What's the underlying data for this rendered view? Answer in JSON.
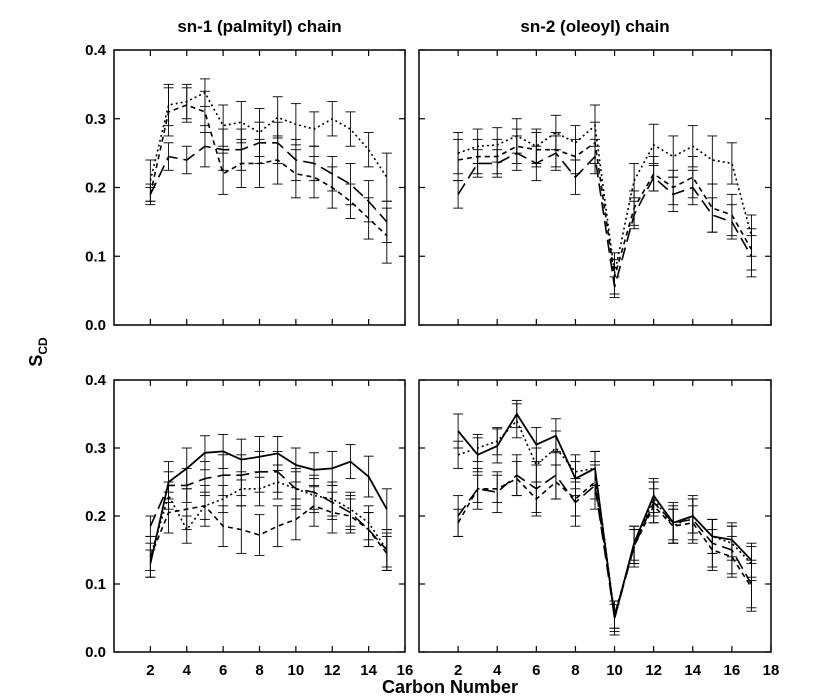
{
  "figure": {
    "xlabel": "Carbon Number",
    "ylabel": "S",
    "ylabel_sub": "CD"
  },
  "chart_data": [
    {
      "id": "top-left",
      "type": "line",
      "title": "sn-1 (palmityl) chain",
      "xlim": [
        0,
        16
      ],
      "ylim": [
        0,
        0.4
      ],
      "xticks": [
        2,
        4,
        6,
        8,
        10,
        12,
        14,
        16
      ],
      "yticks": [
        "0.0",
        "0.1",
        "0.2",
        "0.3",
        "0.4"
      ],
      "show_x_ticklabels": false,
      "show_y_ticklabels": true,
      "series": [
        {
          "style": "dotted",
          "x": [
            2,
            3,
            4,
            5,
            6,
            7,
            8,
            9,
            10,
            11,
            12,
            13,
            14,
            15
          ],
          "y": [
            0.21,
            0.32,
            0.325,
            0.338,
            0.29,
            0.295,
            0.28,
            0.302,
            0.292,
            0.285,
            0.3,
            0.285,
            0.255,
            0.215
          ],
          "err": [
            0.03,
            0.03,
            0.025,
            0.02,
            0.03,
            0.03,
            0.035,
            0.03,
            0.03,
            0.025,
            0.025,
            0.025,
            0.025,
            0.035
          ]
        },
        {
          "style": "short-dash",
          "x": [
            2,
            3,
            4,
            5,
            6,
            7,
            8,
            9,
            10,
            11,
            12,
            13,
            14,
            15
          ],
          "y": [
            0.19,
            0.31,
            0.32,
            0.31,
            0.22,
            0.235,
            0.235,
            0.24,
            0.22,
            0.215,
            0.2,
            0.18,
            0.155,
            0.13
          ],
          "err": [
            0.015,
            0.035,
            0.025,
            0.03,
            0.03,
            0.035,
            0.035,
            0.035,
            0.035,
            0.03,
            0.03,
            0.025,
            0.03,
            0.04
          ]
        },
        {
          "style": "long-dash",
          "x": [
            2,
            3,
            4,
            5,
            6,
            7,
            8,
            9,
            10,
            11,
            12,
            13,
            14,
            15
          ],
          "y": [
            0.19,
            0.245,
            0.24,
            0.26,
            0.255,
            0.255,
            0.265,
            0.265,
            0.24,
            0.235,
            0.22,
            0.205,
            0.18,
            0.15
          ],
          "err": [
            0.01,
            0.02,
            0.02,
            0.03,
            0.03,
            0.03,
            0.03,
            0.03,
            0.03,
            0.025,
            0.025,
            0.03,
            0.03,
            0.03
          ]
        }
      ]
    },
    {
      "id": "top-right",
      "type": "line",
      "title": "sn-2 (oleoyl) chain",
      "xlim": [
        0,
        18
      ],
      "ylim": [
        0,
        0.4
      ],
      "xticks": [
        2,
        4,
        6,
        8,
        10,
        12,
        14,
        16,
        18
      ],
      "yticks": [
        "0.0",
        "0.1",
        "0.2",
        "0.3",
        "0.4"
      ],
      "show_x_ticklabels": false,
      "show_y_ticklabels": false,
      "series": [
        {
          "style": "dotted",
          "x": [
            2,
            3,
            4,
            5,
            6,
            7,
            8,
            9,
            10,
            11,
            12,
            13,
            14,
            15,
            16,
            17
          ],
          "y": [
            0.25,
            0.26,
            0.262,
            0.275,
            0.26,
            0.28,
            0.265,
            0.29,
            0.075,
            0.21,
            0.262,
            0.245,
            0.26,
            0.24,
            0.235,
            0.13
          ],
          "err": [
            0.03,
            0.025,
            0.025,
            0.025,
            0.025,
            0.025,
            0.025,
            0.03,
            0.03,
            0.025,
            0.03,
            0.03,
            0.03,
            0.035,
            0.03,
            0.03
          ]
        },
        {
          "style": "short-dash",
          "x": [
            2,
            3,
            4,
            5,
            6,
            7,
            8,
            9,
            10,
            11,
            12,
            13,
            14,
            15,
            16,
            17
          ],
          "y": [
            0.24,
            0.245,
            0.245,
            0.26,
            0.255,
            0.255,
            0.245,
            0.265,
            0.07,
            0.17,
            0.22,
            0.2,
            0.215,
            0.17,
            0.16,
            0.11
          ],
          "err": [
            0.03,
            0.025,
            0.025,
            0.025,
            0.025,
            0.025,
            0.025,
            0.03,
            0.025,
            0.025,
            0.025,
            0.025,
            0.03,
            0.035,
            0.03,
            0.03
          ]
        },
        {
          "style": "long-dash",
          "x": [
            2,
            3,
            4,
            5,
            6,
            7,
            8,
            9,
            10,
            11,
            12,
            13,
            14,
            15,
            16,
            17
          ],
          "y": [
            0.19,
            0.235,
            0.235,
            0.25,
            0.235,
            0.25,
            0.215,
            0.245,
            0.055,
            0.16,
            0.215,
            0.19,
            0.2,
            0.16,
            0.15,
            0.1
          ],
          "err": [
            0.02,
            0.02,
            0.02,
            0.025,
            0.025,
            0.025,
            0.025,
            0.025,
            0.015,
            0.02,
            0.02,
            0.025,
            0.025,
            0.025,
            0.025,
            0.03
          ]
        }
      ]
    },
    {
      "id": "bottom-left",
      "type": "line",
      "title": "",
      "xlim": [
        0,
        16
      ],
      "ylim": [
        0,
        0.4
      ],
      "xticks": [
        2,
        4,
        6,
        8,
        10,
        12,
        14,
        16
      ],
      "yticks": [
        "0.0",
        "0.1",
        "0.2",
        "0.3",
        "0.4"
      ],
      "show_x_ticklabels": true,
      "show_y_ticklabels": true,
      "series": [
        {
          "style": "solid",
          "x": [
            2,
            3,
            4,
            5,
            6,
            7,
            8,
            9,
            10,
            11,
            12,
            13,
            14,
            15
          ],
          "y": [
            0.13,
            0.25,
            0.27,
            0.293,
            0.295,
            0.283,
            0.287,
            0.292,
            0.275,
            0.268,
            0.27,
            0.28,
            0.258,
            0.21
          ],
          "err": [
            0.02,
            0.03,
            0.03,
            0.025,
            0.025,
            0.03,
            0.03,
            0.025,
            0.025,
            0.025,
            0.025,
            0.025,
            0.03,
            0.03
          ]
        },
        {
          "style": "long-dash",
          "x": [
            2,
            3,
            4,
            5,
            6,
            7,
            8,
            9,
            10,
            11,
            12,
            13,
            14,
            15
          ],
          "y": [
            0.185,
            0.245,
            0.245,
            0.255,
            0.26,
            0.26,
            0.265,
            0.265,
            0.24,
            0.235,
            0.22,
            0.205,
            0.18,
            0.15
          ],
          "err": [
            0.015,
            0.02,
            0.025,
            0.025,
            0.03,
            0.03,
            0.03,
            0.03,
            0.03,
            0.025,
            0.025,
            0.025,
            0.025,
            0.03
          ]
        },
        {
          "style": "dotted",
          "x": [
            2,
            3,
            4,
            5,
            6,
            7,
            8,
            9,
            10,
            11,
            12,
            13,
            14,
            15
          ],
          "y": [
            0.14,
            0.23,
            0.18,
            0.215,
            0.225,
            0.24,
            0.24,
            0.25,
            0.24,
            0.23,
            0.225,
            0.21,
            0.19,
            0.15
          ],
          "err": [
            0.02,
            0.02,
            0.02,
            0.02,
            0.02,
            0.025,
            0.025,
            0.025,
            0.025,
            0.025,
            0.025,
            0.025,
            0.025,
            0.025
          ]
        },
        {
          "style": "short-dash",
          "x": [
            2,
            3,
            4,
            5,
            6,
            7,
            8,
            9,
            10,
            11,
            12,
            13,
            14,
            15
          ],
          "y": [
            0.14,
            0.205,
            0.21,
            0.215,
            0.185,
            0.18,
            0.172,
            0.185,
            0.195,
            0.215,
            0.205,
            0.2,
            0.18,
            0.145
          ],
          "err": [
            0.03,
            0.03,
            0.03,
            0.03,
            0.03,
            0.035,
            0.03,
            0.03,
            0.03,
            0.03,
            0.03,
            0.025,
            0.025,
            0.025
          ]
        }
      ]
    },
    {
      "id": "bottom-right",
      "type": "line",
      "title": "",
      "xlim": [
        0,
        18
      ],
      "ylim": [
        0,
        0.4
      ],
      "xticks": [
        2,
        4,
        6,
        8,
        10,
        12,
        14,
        16,
        18
      ],
      "yticks": [
        "0.0",
        "0.1",
        "0.2",
        "0.3",
        "0.4"
      ],
      "show_x_ticklabels": true,
      "show_y_ticklabels": false,
      "series": [
        {
          "style": "solid",
          "x": [
            2,
            3,
            4,
            5,
            6,
            7,
            8,
            9,
            10,
            11,
            12,
            13,
            14,
            15,
            16,
            17
          ],
          "y": [
            0.325,
            0.29,
            0.303,
            0.35,
            0.305,
            0.318,
            0.255,
            0.27,
            0.05,
            0.16,
            0.23,
            0.19,
            0.2,
            0.17,
            0.165,
            0.135
          ],
          "err": [
            0.025,
            0.025,
            0.025,
            0.02,
            0.025,
            0.025,
            0.025,
            0.025,
            0.025,
            0.025,
            0.025,
            0.025,
            0.025,
            0.025,
            0.025,
            0.025
          ]
        },
        {
          "style": "dotted",
          "x": [
            2,
            3,
            4,
            5,
            6,
            7,
            8,
            9,
            10,
            11,
            12,
            13,
            14,
            15,
            16,
            17
          ],
          "y": [
            0.29,
            0.3,
            0.31,
            0.34,
            0.275,
            0.3,
            0.265,
            0.27,
            0.055,
            0.155,
            0.225,
            0.185,
            0.2,
            0.17,
            0.16,
            0.13
          ],
          "err": [
            0.02,
            0.02,
            0.02,
            0.025,
            0.025,
            0.025,
            0.025,
            0.025,
            0.02,
            0.025,
            0.025,
            0.025,
            0.025,
            0.025,
            0.025,
            0.025
          ]
        },
        {
          "style": "long-dash",
          "x": [
            2,
            3,
            4,
            5,
            6,
            7,
            8,
            9,
            10,
            11,
            12,
            13,
            14,
            15,
            16,
            17
          ],
          "y": [
            0.2,
            0.24,
            0.235,
            0.26,
            0.24,
            0.26,
            0.22,
            0.245,
            0.05,
            0.155,
            0.22,
            0.19,
            0.195,
            0.16,
            0.15,
            0.1
          ],
          "err": [
            0.03,
            0.03,
            0.03,
            0.03,
            0.035,
            0.035,
            0.035,
            0.035,
            0.02,
            0.03,
            0.03,
            0.03,
            0.035,
            0.035,
            0.035,
            0.035
          ]
        },
        {
          "style": "short-dash",
          "x": [
            2,
            3,
            4,
            5,
            6,
            7,
            8,
            9,
            10,
            11,
            12,
            13,
            14,
            15,
            16,
            17
          ],
          "y": [
            0.19,
            0.24,
            0.24,
            0.255,
            0.225,
            0.25,
            0.225,
            0.25,
            0.055,
            0.155,
            0.215,
            0.185,
            0.19,
            0.15,
            0.14,
            0.095
          ],
          "err": [
            0.02,
            0.02,
            0.02,
            0.025,
            0.025,
            0.025,
            0.025,
            0.025,
            0.02,
            0.025,
            0.025,
            0.025,
            0.025,
            0.03,
            0.03,
            0.035
          ]
        }
      ]
    }
  ]
}
